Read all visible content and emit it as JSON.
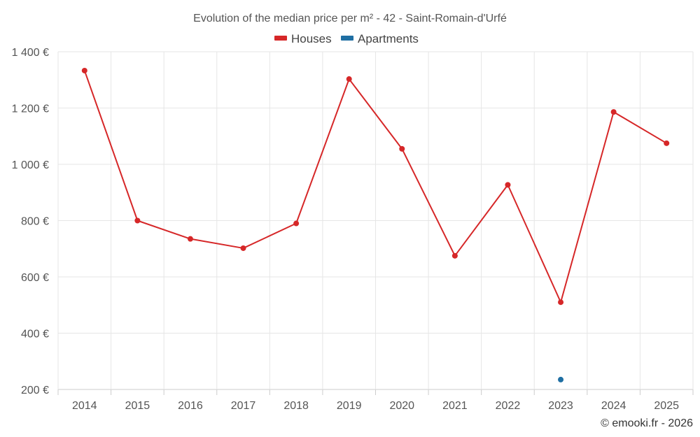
{
  "chart_data": {
    "type": "line",
    "title": "Evolution of the median price per m² - 42 - Saint-Romain-d'Urfé",
    "categories": [
      "2014",
      "2015",
      "2016",
      "2017",
      "2018",
      "2019",
      "2020",
      "2021",
      "2022",
      "2023",
      "2024",
      "2025"
    ],
    "series": [
      {
        "name": "Houses",
        "color": "#d62728",
        "values": [
          1333,
          800,
          735,
          702,
          790,
          1303,
          1055,
          675,
          927,
          510,
          1186,
          1075
        ]
      },
      {
        "name": "Apartments",
        "color": "#1f6fa3",
        "values": [
          null,
          null,
          null,
          null,
          null,
          null,
          null,
          null,
          null,
          235,
          null,
          null
        ]
      }
    ],
    "y_ticks": [
      200,
      400,
      600,
      800,
      1000,
      1200,
      1400
    ],
    "y_tick_labels": [
      "200 €",
      "400 €",
      "600 €",
      "800 €",
      "1 000 €",
      "1 200 €",
      "1 400 €"
    ],
    "ylim": [
      200,
      1400
    ],
    "xlabel": "",
    "ylabel": "",
    "legend_position": "top-center",
    "grid": true
  },
  "credit": "© emooki.fr - 2026"
}
